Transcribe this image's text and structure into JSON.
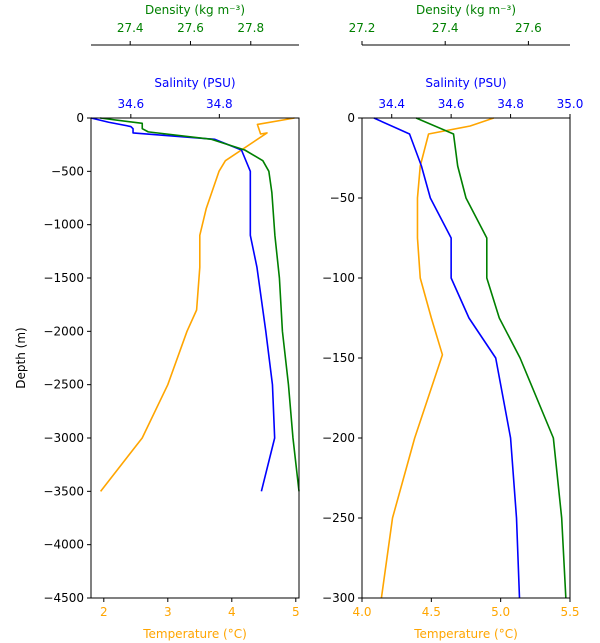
{
  "colors": {
    "temperature": "#ffa500",
    "salinity": "#0000ff",
    "density": "#008000",
    "axis": "#000000"
  },
  "labels": {
    "ylabel": "Depth (m)",
    "temperature": "Temperature (°C)",
    "salinity": "Salinity (PSU)",
    "density": "Density (kg m⁻³)"
  },
  "chart_data": [
    {
      "type": "line",
      "ylabel": "Depth (m)",
      "ylim": [
        -4500,
        0
      ],
      "yticks": [
        0,
        -500,
        -1000,
        -1500,
        -2000,
        -2500,
        -3000,
        -3500,
        -4000,
        -4500
      ],
      "ytick_labels": [
        "0",
        "−500",
        "−1000",
        "−1500",
        "−2000",
        "−2500",
        "−3000",
        "−3500",
        "−4000",
        "−4500"
      ],
      "axes": {
        "temperature": {
          "label": "Temperature (°C)",
          "lim": [
            1.8,
            5.05
          ],
          "ticks": [
            2,
            3,
            4,
            5
          ],
          "tick_labels": [
            "2",
            "3",
            "4",
            "5"
          ]
        },
        "salinity": {
          "label": "Salinity (PSU)",
          "lim": [
            34.51,
            34.98
          ],
          "ticks": [
            34.6,
            34.8
          ],
          "tick_labels": [
            "34.6",
            "34.8"
          ]
        },
        "density": {
          "label": "Density (kg m⁻³)",
          "lim": [
            27.27,
            27.96
          ],
          "ticks": [
            27.4,
            27.6,
            27.8
          ],
          "tick_labels": [
            "27.4",
            "27.6",
            "27.8"
          ]
        }
      },
      "series": [
        {
          "axis": "temperature",
          "points": [
            [
              4.98,
              0
            ],
            [
              4.4,
              -60
            ],
            [
              4.45,
              -150
            ],
            [
              4.55,
              -140
            ],
            [
              3.9,
              -400
            ],
            [
              3.8,
              -500
            ],
            [
              3.6,
              -850
            ],
            [
              3.5,
              -1100
            ],
            [
              3.5,
              -1400
            ],
            [
              3.45,
              -1800
            ],
            [
              3.3,
              -2000
            ],
            [
              3.0,
              -2500
            ],
            [
              2.6,
              -3000
            ],
            [
              1.95,
              -3500
            ]
          ]
        },
        {
          "axis": "salinity",
          "points": [
            [
              34.51,
              0
            ],
            [
              34.55,
              -40
            ],
            [
              34.6,
              -80
            ],
            [
              34.605,
              -100
            ],
            [
              34.605,
              -140
            ],
            [
              34.79,
              -200
            ],
            [
              34.85,
              -300
            ],
            [
              34.87,
              -500
            ],
            [
              34.87,
              -700
            ],
            [
              34.87,
              -900
            ],
            [
              34.87,
              -1100
            ],
            [
              34.885,
              -1400
            ],
            [
              34.895,
              -1700
            ],
            [
              34.905,
              -2000
            ],
            [
              34.92,
              -2500
            ],
            [
              34.925,
              -3000
            ],
            [
              34.895,
              -3500
            ]
          ]
        },
        {
          "axis": "density",
          "points": [
            [
              27.3,
              0
            ],
            [
              27.44,
              -50
            ],
            [
              27.44,
              -100
            ],
            [
              27.46,
              -130
            ],
            [
              27.67,
              -200
            ],
            [
              27.78,
              -300
            ],
            [
              27.84,
              -400
            ],
            [
              27.86,
              -500
            ],
            [
              27.87,
              -700
            ],
            [
              27.875,
              -900
            ],
            [
              27.88,
              -1100
            ],
            [
              27.895,
              -1500
            ],
            [
              27.905,
              -2000
            ],
            [
              27.925,
              -2500
            ],
            [
              27.94,
              -3000
            ],
            [
              27.96,
              -3500
            ]
          ]
        }
      ]
    },
    {
      "type": "line",
      "ylim": [
        -300,
        0
      ],
      "yticks": [
        0,
        -50,
        -100,
        -150,
        -200,
        -250,
        -300
      ],
      "ytick_labels": [
        "0",
        "−50",
        "−100",
        "−150",
        "−200",
        "−250",
        "−300"
      ],
      "axes": {
        "temperature": {
          "label": "Temperature (°C)",
          "lim": [
            4.0,
            5.5
          ],
          "ticks": [
            4.0,
            4.5,
            5.0,
            5.5
          ],
          "tick_labels": [
            "4.0",
            "4.5",
            "5.0",
            "5.5"
          ]
        },
        "salinity": {
          "label": "Salinity (PSU)",
          "lim": [
            34.3,
            35.0
          ],
          "ticks": [
            34.4,
            34.6,
            34.8,
            35.0
          ],
          "tick_labels": [
            "34.4",
            "34.6",
            "34.8",
            "35.0"
          ]
        },
        "density": {
          "label": "Density (kg m⁻³)",
          "lim": [
            27.2,
            27.7
          ],
          "ticks": [
            27.2,
            27.4,
            27.6
          ],
          "tick_labels": [
            "27.2",
            "27.4",
            "27.6"
          ]
        }
      },
      "series": [
        {
          "axis": "temperature",
          "points": [
            [
              4.95,
              0
            ],
            [
              4.78,
              -5
            ],
            [
              4.48,
              -10
            ],
            [
              4.42,
              -30
            ],
            [
              4.4,
              -50
            ],
            [
              4.4,
              -75
            ],
            [
              4.42,
              -100
            ],
            [
              4.5,
              -125
            ],
            [
              4.58,
              -148
            ],
            [
              4.38,
              -200
            ],
            [
              4.22,
              -250
            ],
            [
              4.14,
              -300
            ]
          ]
        },
        {
          "axis": "salinity",
          "points": [
            [
              34.34,
              0
            ],
            [
              34.46,
              -10
            ],
            [
              34.5,
              -30
            ],
            [
              34.53,
              -50
            ],
            [
              34.6,
              -75
            ],
            [
              34.6,
              -100
            ],
            [
              34.66,
              -125
            ],
            [
              34.75,
              -150
            ],
            [
              34.8,
              -200
            ],
            [
              34.82,
              -250
            ],
            [
              34.83,
              -300
            ]
          ]
        },
        {
          "axis": "density",
          "points": [
            [
              27.33,
              0
            ],
            [
              27.42,
              -10
            ],
            [
              27.43,
              -30
            ],
            [
              27.45,
              -50
            ],
            [
              27.5,
              -75
            ],
            [
              27.5,
              -100
            ],
            [
              27.53,
              -125
            ],
            [
              27.58,
              -150
            ],
            [
              27.66,
              -200
            ],
            [
              27.68,
              -250
            ],
            [
              27.69,
              -300
            ]
          ]
        }
      ]
    }
  ]
}
